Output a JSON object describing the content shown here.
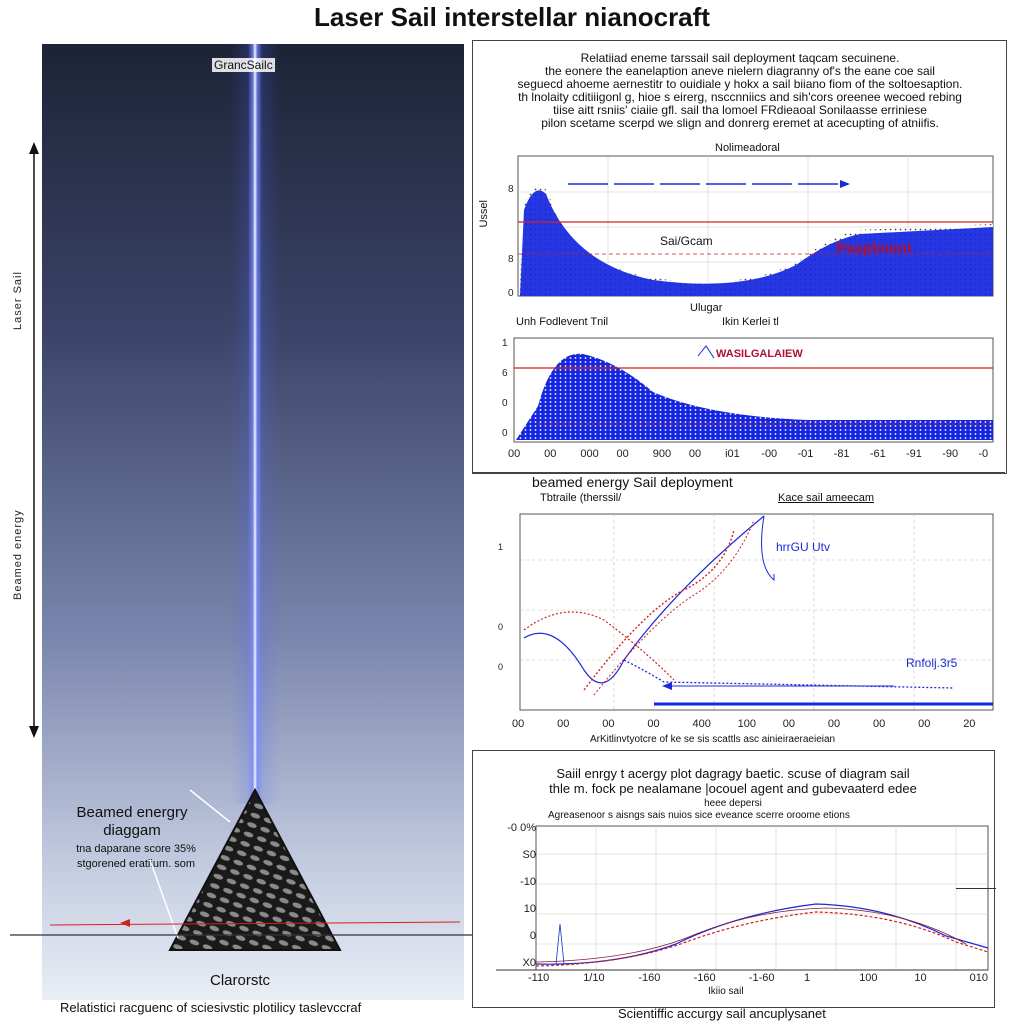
{
  "page_title": "Laser Sail interstellar nianocraft",
  "left_panel": {
    "top_label": "GrancSailc",
    "vertical_text_top": "Laser Sail",
    "vertical_text_bottom": "Beamed energy",
    "callout_title_line1": "Beamed energry",
    "callout_title_line2": "diaggam",
    "callout_sub_line1": "tna daparane score 35%",
    "callout_sub_line2": "stgorened eratiium. som",
    "sail_label": "Clarorstc",
    "bottom_caption": "Relatistici racguenc of sciesivstic plotilicy taslevccraf"
  },
  "top_panel": {
    "desc_line1": "Relatiiad eneme tarssail sail deployment taqcam secuinene.",
    "desc_line2": "the eonere the eanelaption aneve nielern diagranny of's the eane coe sail",
    "desc_line3": "seguecd ahoeme aernestitr to ouidiale y hokx a sail biiano fiom of the soltoesaption.",
    "desc_line4": "th lnolaity cditiiigonl g, hioe s eirerg, nsccnniics and sih'cors oreenee wecoed rebing",
    "desc_line5": "tiise aitt rsniis' ciaiie gfl. sail tha lomoel FRdieaoal Sonilaasse erriniese",
    "desc_line6": "pilon scetame scerpd we slign and donrerg eremet at acecupting of atniifis.",
    "chart1_title": "Nolimeadoral",
    "chart1_inner_label": "Sai/Gcam",
    "chart1_red_label": "Peaplment",
    "chart1_xlabel_left": "Unh Fodlevent Tnil",
    "chart1_xlabel_mid": "Ikin Kerlei tl",
    "chart1_xlabel_center": "Ulugar",
    "chart1_ylabel": "Ussel",
    "chart2_red_label": "WASILGALAIEW",
    "chart2_ticks_x": [
      "00",
      "00",
      "000",
      "00",
      "900",
      "00",
      "i01",
      "-00",
      "-01",
      "-81",
      "-61",
      "-91",
      "-90",
      "-0"
    ]
  },
  "mid_panel": {
    "title": "beamed energy Sail deployment",
    "sub_left": "Tbtraile  (therssil/",
    "sub_right": "Kace sail ameecam",
    "blue_label1": "hrrGU Utv",
    "blue_label2": "Rnfolj.3r5",
    "xlabel": "ArKitlinvtyotcre of ke se sis scattls asc ainieiraeraeieian",
    "ticks_x": [
      "00",
      "00",
      "00",
      "00",
      "400",
      "100",
      "00",
      "00",
      "00",
      "00",
      "20"
    ]
  },
  "bottom_panel": {
    "title_line1": "Saiil enrgy t acergy plot dagragy baetic. scuse of diagram sail",
    "title_line2": "thle m. fock pe nealamane |ocouel agent and gubevaaterd edee",
    "title_line3": "heee depersi",
    "sub": "Agreasenoor s aisngs sais nuios sice eveance scerre oroome etions",
    "xlabel": "Ikiio sail",
    "ticks_x": [
      "-110",
      "1/10",
      "-160",
      "-160",
      "-1-60",
      "1",
      "100",
      "10",
      "010"
    ],
    "ticks_y": [
      "-0 0%",
      "S0",
      "-10",
      "10",
      "0",
      "X0"
    ],
    "caption": "Scientiffic accurgy sail ancuplysanet"
  },
  "colors": {
    "series_blue": "#1a2ad8",
    "series_red": "#d42020",
    "fill_blue": "#1426e0",
    "panel_border": "#444444"
  },
  "icons": [
    "arrow-up-down-icon",
    "triangle-sail-icon",
    "arrow-right-icon"
  ]
}
